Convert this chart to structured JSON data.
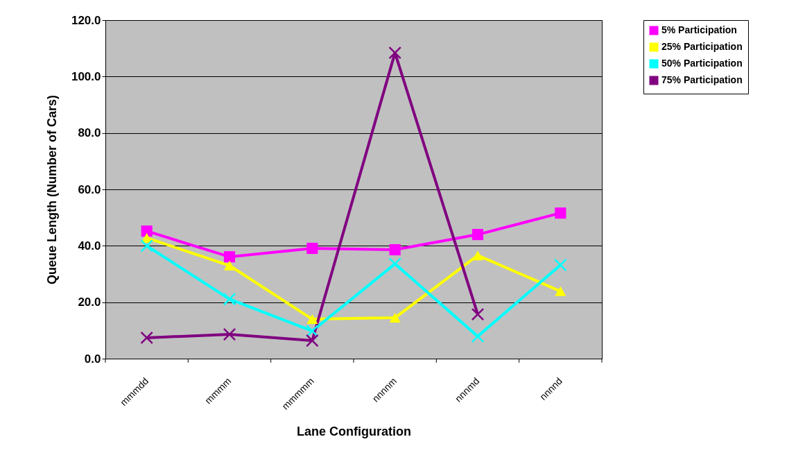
{
  "chart_data": {
    "type": "line",
    "xlabel": "Lane Configuration",
    "ylabel": "Queue Length (Number of Cars)",
    "categories": [
      "mmmdd",
      "mmmm",
      "mmmmm",
      "nnnnm",
      "nnnmd",
      "nnnnd"
    ],
    "ylim": [
      0,
      120
    ],
    "yticks": [
      {
        "value": 0,
        "label": "0.0"
      },
      {
        "value": 20,
        "label": "20.0"
      },
      {
        "value": 40,
        "label": "40.0"
      },
      {
        "value": 60,
        "label": "60.0"
      },
      {
        "value": 80,
        "label": "80.0"
      },
      {
        "value": 100,
        "label": "100.0"
      },
      {
        "value": 120,
        "label": "120.0"
      }
    ],
    "grid": "y",
    "legend": "right",
    "series": [
      {
        "name": "5% Participation",
        "color": "#ff00ff",
        "marker": "square",
        "values": [
          45.2,
          36.1,
          39.1,
          38.6,
          44.0,
          51.6
        ]
      },
      {
        "name": "25% Participation",
        "color": "#ffff00",
        "marker": "triangle",
        "values": [
          42.8,
          33.0,
          14.0,
          14.5,
          36.6,
          23.9
        ]
      },
      {
        "name": "50% Participation",
        "color": "#00ffff",
        "marker": "cross",
        "values": [
          40.0,
          21.1,
          9.8,
          33.6,
          7.9,
          33.2
        ]
      },
      {
        "name": "75% Participation",
        "color": "#800080",
        "marker": "cross",
        "values": [
          7.4,
          8.6,
          6.4,
          108.4,
          15.7,
          null
        ]
      }
    ]
  }
}
